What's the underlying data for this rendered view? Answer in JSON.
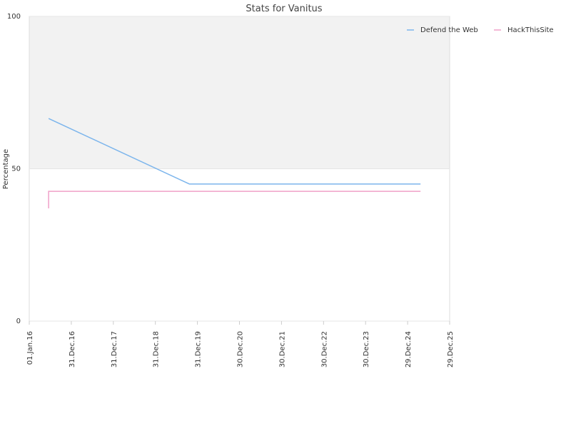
{
  "chart_data": {
    "type": "line",
    "title": "Stats for Vanitus",
    "y_label": "Percentage",
    "xlim": [
      "2016-01-01",
      "2025-12-29"
    ],
    "xticks": [
      {
        "value": "2016-01-01",
        "label": "01.Jan.16"
      },
      {
        "value": "2016-12-31",
        "label": "31.Dec.16"
      },
      {
        "value": "2017-12-31",
        "label": "31.Dec.17"
      },
      {
        "value": "2018-12-31",
        "label": "31.Dec.18"
      },
      {
        "value": "2019-12-31",
        "label": "31.Dec.19"
      },
      {
        "value": "2020-12-30",
        "label": "30.Dec.20"
      },
      {
        "value": "2021-12-30",
        "label": "30.Dec.21"
      },
      {
        "value": "2022-12-30",
        "label": "30.Dec.22"
      },
      {
        "value": "2023-12-30",
        "label": "30.Dec.23"
      },
      {
        "value": "2024-12-29",
        "label": "29.Dec.24"
      },
      {
        "value": "2025-12-29",
        "label": "29.Dec.25"
      }
    ],
    "ylim": [
      0,
      100
    ],
    "yticks": [
      0,
      50,
      100
    ],
    "grid": true,
    "legend": "top-right",
    "series": [
      {
        "name": "Defend the Web",
        "color": "#7cb5ec",
        "x": [
          "2016-06-17",
          "2019-10-22",
          "2025-04-20"
        ],
        "values": [
          66.5,
          45,
          45
        ]
      },
      {
        "name": "HackThisSite",
        "color": "#f0a0c8",
        "x": [
          "2016-06-17",
          "2016-06-17",
          "2025-04-20"
        ],
        "values": [
          37,
          42.6,
          42.6
        ]
      }
    ]
  }
}
